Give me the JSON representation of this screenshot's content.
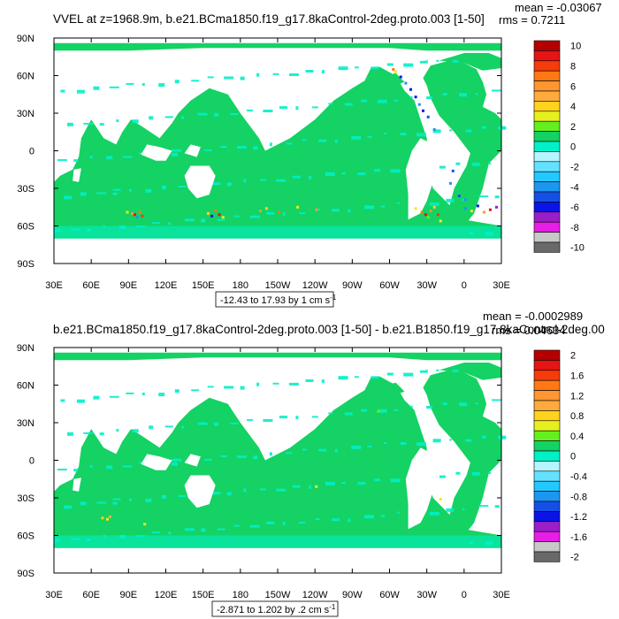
{
  "panels": [
    {
      "title": "VVEL at z=1968.9m, b.e21.BCma1850.f19_g17.8kaControl-2deg.proto.003 [1-50]",
      "mean": "mean = -0.03067",
      "rms": "rms = 0.7211",
      "range_note": "-12.43 to 17.93 by 1 cm s",
      "range_note_sup": "-1",
      "lat_labels": [
        "90N",
        "60N",
        "30N",
        "0",
        "30S",
        "60S",
        "90S"
      ],
      "lon_labels": [
        "30E",
        "60E",
        "90E",
        "120E",
        "150E",
        "180",
        "150W",
        "120W",
        "90W",
        "60W",
        "30W",
        "0",
        "30E"
      ],
      "colorbar_labels": [
        "10",
        "8",
        "6",
        "4",
        "2",
        "0",
        "-2",
        "-4",
        "-6",
        "-8",
        "-10"
      ],
      "colors": [
        "#696969",
        "#c8c8c8",
        "#e61ee6",
        "#9b1ec8",
        "#0a14e6",
        "#1450e6",
        "#1e96f0",
        "#23c8ff",
        "#64e1ff",
        "#b4f5ff",
        "#00f0c8",
        "#14d264",
        "#64f01e",
        "#e6f01e",
        "#ffd21e",
        "#ffaa3c",
        "#ff9632",
        "#ff7814",
        "#f53c0a",
        "#e61414",
        "#b40000"
      ]
    },
    {
      "title": "b.e21.BCma1850.f19_g17.8kaControl-2deg.proto.003 [1-50] - b.e21.B1850.f19_g17.8kaControl-2deg.00",
      "mean": "mean = -0.0002989",
      "rms": "rms = 0.04634",
      "range_note": "-2.871 to 1.202 by .2 cm s",
      "range_note_sup": "-1",
      "lat_labels": [
        "90N",
        "60N",
        "30N",
        "0",
        "30S",
        "60S",
        "90S"
      ],
      "lon_labels": [
        "30E",
        "60E",
        "90E",
        "120E",
        "150E",
        "180",
        "150W",
        "120W",
        "90W",
        "60W",
        "30W",
        "0",
        "30E"
      ],
      "colorbar_labels": [
        "2",
        "1.6",
        "1.2",
        "0.8",
        "0.4",
        "0",
        "-0.4",
        "-0.8",
        "-1.2",
        "-1.6",
        "-2"
      ],
      "colors": [
        "#696969",
        "#c8c8c8",
        "#e61ee6",
        "#9b1ec8",
        "#0a14e6",
        "#1450e6",
        "#1e96f0",
        "#23c8ff",
        "#64e1ff",
        "#b4f5ff",
        "#00f0c8",
        "#14d264",
        "#64f01e",
        "#e6f01e",
        "#ffd21e",
        "#ffaa3c",
        "#ff9632",
        "#ff7814",
        "#f53c0a",
        "#e61414",
        "#b40000"
      ]
    }
  ]
}
